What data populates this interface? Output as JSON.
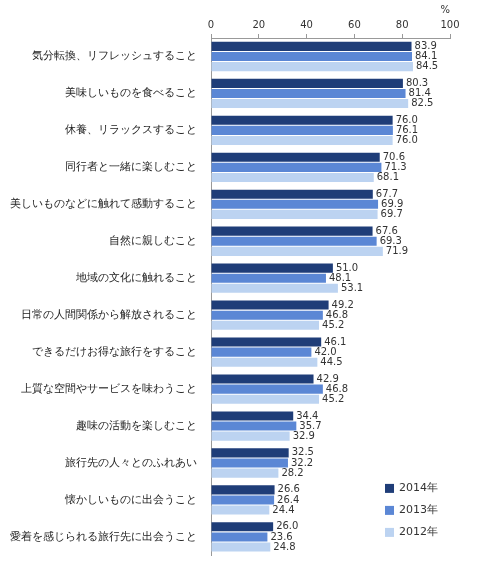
{
  "chart_data": {
    "type": "bar",
    "orientation": "horizontal",
    "xlabel": "%",
    "categories": [
      "気分転換、リフレッシュすること",
      "美味しいものを食べること",
      "休養、リラックスすること",
      "同行者と一緒に楽しむこと",
      "美しいものなどに触れて感動すること",
      "自然に親しむこと",
      "地域の文化に触れること",
      "日常の人間関係から解放されること",
      "できるだけお得な旅行をすること",
      "上質な空間やサービスを味わうこと",
      "趣味の活動を楽しむこと",
      "旅行先の人々とのふれあい",
      "懐かしいものに出会うこと",
      "愛着を感じられる旅行先に出会うこと"
    ],
    "series": [
      {
        "name": "2014年",
        "color": "#1f3d78",
        "values": [
          83.9,
          80.3,
          76.0,
          70.6,
          67.7,
          67.6,
          51.0,
          49.2,
          46.1,
          42.9,
          34.4,
          32.5,
          26.6,
          26.0
        ],
        "value_labels": [
          "83.9",
          "80.3",
          "76.0",
          "70.6",
          "67.7",
          "67.6",
          "51.0",
          "49.2",
          "46.1",
          "42.9",
          "34.4",
          "32.5",
          "26.6",
          "26.0"
        ]
      },
      {
        "name": "2013年",
        "color": "#5b87d5",
        "values": [
          84.1,
          81.4,
          76.1,
          71.3,
          69.9,
          69.3,
          48.1,
          46.8,
          42.0,
          46.8,
          35.7,
          32.2,
          26.4,
          23.6
        ],
        "value_labels": [
          "84.1",
          "81.4",
          "76.1",
          "71.3",
          "69.9",
          "69.3",
          "48.1",
          "46.8",
          "42.0",
          "46.8",
          "35.7",
          "32.2",
          "26.4",
          "23.6"
        ]
      },
      {
        "name": "2012年",
        "color": "#bcd3f1",
        "values": [
          84.5,
          82.5,
          76.0,
          68.1,
          69.7,
          71.9,
          53.1,
          45.2,
          44.5,
          45.2,
          32.9,
          28.2,
          24.4,
          24.8
        ],
        "value_labels": [
          "84.5",
          "82.5",
          "76.0",
          "68.1",
          "69.7",
          "71.9",
          "53.1",
          "45.2",
          "44.5",
          "45.2",
          "32.9",
          "28.2",
          "24.4",
          "24.8"
        ]
      }
    ],
    "xlim": [
      0,
      100
    ],
    "xticks": [
      0,
      20,
      40,
      60,
      80,
      100
    ],
    "grid": false,
    "legend": "bottom-right",
    "data_labels": true
  }
}
